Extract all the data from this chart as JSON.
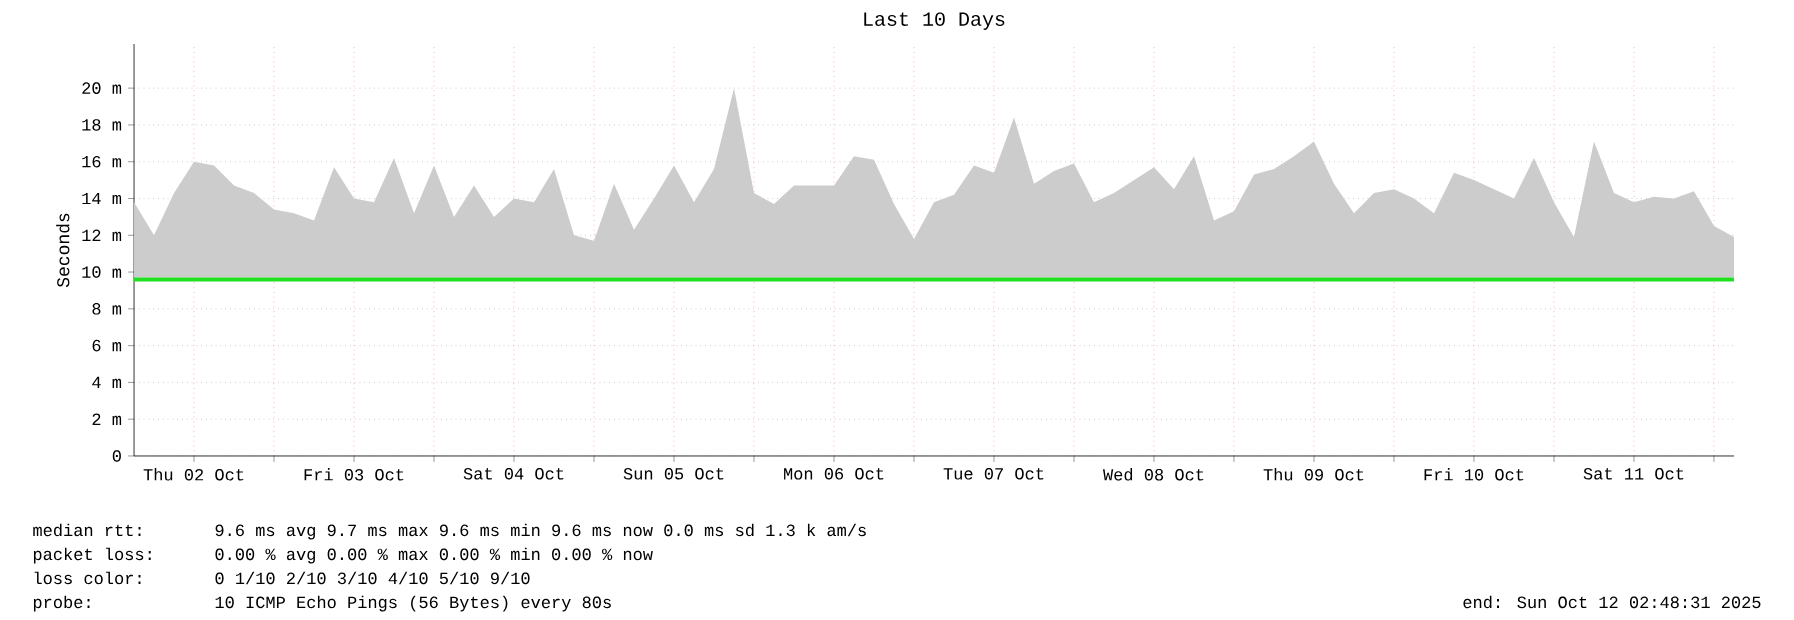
{
  "chart_data": {
    "type": "line",
    "title": "Last 10 Days",
    "ylabel": "Seconds",
    "x": [
      "2025-10-02T03:00",
      "2025-10-02T06:00",
      "2025-10-02T09:00",
      "2025-10-02T12:00",
      "2025-10-02T15:00",
      "2025-10-02T18:00",
      "2025-10-02T21:00",
      "2025-10-03T00:00",
      "2025-10-03T03:00",
      "2025-10-03T06:00",
      "2025-10-03T09:00",
      "2025-10-03T12:00",
      "2025-10-03T15:00",
      "2025-10-03T18:00",
      "2025-10-03T21:00",
      "2025-10-04T00:00",
      "2025-10-04T03:00",
      "2025-10-04T06:00",
      "2025-10-04T09:00",
      "2025-10-04T12:00",
      "2025-10-04T15:00",
      "2025-10-04T18:00",
      "2025-10-04T21:00",
      "2025-10-05T00:00",
      "2025-10-05T03:00",
      "2025-10-05T06:00",
      "2025-10-05T09:00",
      "2025-10-05T12:00",
      "2025-10-05T15:00",
      "2025-10-05T18:00",
      "2025-10-05T21:00",
      "2025-10-06T00:00",
      "2025-10-06T03:00",
      "2025-10-06T06:00",
      "2025-10-06T09:00",
      "2025-10-06T12:00",
      "2025-10-06T15:00",
      "2025-10-06T18:00",
      "2025-10-06T21:00",
      "2025-10-07T00:00",
      "2025-10-07T03:00",
      "2025-10-07T06:00",
      "2025-10-07T09:00",
      "2025-10-07T12:00",
      "2025-10-07T15:00",
      "2025-10-07T18:00",
      "2025-10-07T21:00",
      "2025-10-08T00:00",
      "2025-10-08T03:00",
      "2025-10-08T06:00",
      "2025-10-08T09:00",
      "2025-10-08T12:00",
      "2025-10-08T15:00",
      "2025-10-08T18:00",
      "2025-10-08T21:00",
      "2025-10-09T00:00",
      "2025-10-09T03:00",
      "2025-10-09T06:00",
      "2025-10-09T09:00",
      "2025-10-09T12:00",
      "2025-10-09T15:00",
      "2025-10-09T18:00",
      "2025-10-09T21:00",
      "2025-10-10T00:00",
      "2025-10-10T03:00",
      "2025-10-10T06:00",
      "2025-10-10T09:00",
      "2025-10-10T12:00",
      "2025-10-10T15:00",
      "2025-10-10T18:00",
      "2025-10-10T21:00",
      "2025-10-11T00:00",
      "2025-10-11T03:00",
      "2025-10-11T06:00",
      "2025-10-11T09:00",
      "2025-10-11T12:00",
      "2025-10-11T15:00",
      "2025-10-11T18:00",
      "2025-10-11T21:00",
      "2025-10-12T00:00",
      "2025-10-12T03:00"
    ],
    "series": [
      {
        "color": "#20e020",
        "values": [
          9.6,
          9.6,
          9.6,
          9.6,
          9.6,
          9.6,
          9.6,
          9.6,
          9.6,
          9.6,
          9.6,
          9.6,
          9.6,
          9.6,
          9.6,
          9.6,
          9.6,
          9.6,
          9.6,
          9.6,
          9.6,
          9.6,
          9.6,
          9.6,
          9.6,
          9.6,
          9.6,
          9.6,
          9.6,
          9.6,
          9.6,
          9.6,
          9.6,
          9.6,
          9.6,
          9.6,
          9.6,
          9.6,
          9.6,
          9.6,
          9.6,
          9.6,
          9.6,
          9.6,
          9.6,
          9.6,
          9.6,
          9.6,
          9.6,
          9.6,
          9.6,
          9.6,
          9.6,
          9.6,
          9.6,
          9.6,
          9.6,
          9.6,
          9.6,
          9.6,
          9.6,
          9.6,
          9.6,
          9.6,
          9.6,
          9.6,
          9.6,
          9.6,
          9.6,
          9.6,
          9.6,
          9.6,
          9.6,
          9.6,
          9.6,
          9.6,
          9.6,
          9.6,
          9.6,
          9.6,
          9.6
        ],
        "lower": [
          9.7,
          9.7,
          9.7,
          9.7,
          9.7,
          9.7,
          9.7,
          9.7,
          9.7,
          9.7,
          9.7,
          9.7,
          9.7,
          9.7,
          9.7,
          9.7,
          9.7,
          9.7,
          9.7,
          9.7,
          9.7,
          9.7,
          9.7,
          9.7,
          9.7,
          9.7,
          9.7,
          9.7,
          9.7,
          9.7,
          9.7,
          9.7,
          9.7,
          9.7,
          9.7,
          9.7,
          9.7,
          9.7,
          9.7,
          9.7,
          9.7,
          9.7,
          9.7,
          9.7,
          9.7,
          9.7,
          9.7,
          9.7,
          9.7,
          9.7,
          9.7,
          9.7,
          9.7,
          9.7,
          9.7,
          9.7,
          9.7,
          9.7,
          9.7,
          9.7,
          9.7,
          9.7,
          9.7,
          9.7,
          9.7,
          9.7,
          9.7,
          9.7,
          9.7,
          9.7,
          9.7,
          9.7,
          9.7,
          9.7,
          9.7,
          9.7,
          9.7,
          9.7,
          9.7,
          9.7,
          9.7
        ],
        "upper": [
          13.8,
          12,
          14.3,
          16,
          15.8,
          14.7,
          14.3,
          13.4,
          13.2,
          12.8,
          15.7,
          14,
          13.8,
          16.2,
          13.2,
          15.8,
          13,
          14.7,
          13,
          14,
          13.8,
          15.6,
          12,
          11.7,
          14.8,
          12.3,
          14,
          15.8,
          13.8,
          15.6,
          20,
          14.3,
          13.7,
          14.7,
          14.7,
          14.7,
          16.3,
          16.1,
          13.7,
          11.8,
          13.8,
          14.2,
          15.8,
          15.4,
          18.4,
          14.8,
          15.5,
          15.9,
          13.8,
          14.3,
          15,
          15.7,
          14.5,
          16.3,
          12.8,
          13.3,
          15.3,
          15.6,
          16.3,
          17.1,
          14.8,
          13.2,
          14.3,
          14.5,
          14,
          13.2,
          15.4,
          15,
          14.5,
          14,
          16.2,
          13.8,
          11.9,
          17.1,
          14.3,
          13.8,
          14.1,
          14,
          14.4,
          12.5,
          11.9
        ]
      }
    ],
    "xlim": [
      "2025-10-02T03:00",
      "2025-10-12T03:00"
    ],
    "xticks": [
      {
        "value": "2025-10-02T12:00",
        "label": "Thu 02 Oct"
      },
      {
        "value": "2025-10-03T00:00",
        "label": null
      },
      {
        "value": "2025-10-03T12:00",
        "label": "Fri 03 Oct"
      },
      {
        "value": "2025-10-04T00:00",
        "label": null
      },
      {
        "value": "2025-10-04T12:00",
        "label": "Sat 04 Oct"
      },
      {
        "value": "2025-10-05T00:00",
        "label": null
      },
      {
        "value": "2025-10-05T12:00",
        "label": "Sun 05 Oct"
      },
      {
        "value": "2025-10-06T00:00",
        "label": null
      },
      {
        "value": "2025-10-06T12:00",
        "label": "Mon 06 Oct"
      },
      {
        "value": "2025-10-07T00:00",
        "label": null
      },
      {
        "value": "2025-10-07T12:00",
        "label": "Tue 07 Oct"
      },
      {
        "value": "2025-10-08T00:00",
        "label": null
      },
      {
        "value": "2025-10-08T12:00",
        "label": "Wed 08 Oct"
      },
      {
        "value": "2025-10-09T00:00",
        "label": null
      },
      {
        "value": "2025-10-09T12:00",
        "label": "Thu 09 Oct"
      },
      {
        "value": "2025-10-10T00:00",
        "label": null
      },
      {
        "value": "2025-10-10T12:00",
        "label": "Fri 10 Oct"
      },
      {
        "value": "2025-10-11T00:00",
        "label": null
      },
      {
        "value": "2025-10-11T12:00",
        "label": "Sat 11 Oct"
      },
      {
        "value": "2025-10-12T00:00",
        "label": null
      }
    ],
    "ylim": [
      0,
      22.4
    ],
    "yticks": [
      0,
      {
        "value": 2,
        "label": "2 m"
      },
      {
        "value": 4,
        "label": "4 m"
      },
      {
        "value": 6,
        "label": "6 m"
      },
      {
        "value": 8,
        "label": "8 m"
      },
      {
        "value": 10,
        "label": "10 m"
      },
      {
        "value": 12,
        "label": "12 m"
      },
      {
        "value": 14,
        "label": "14 m"
      },
      {
        "value": 16,
        "label": "16 m"
      },
      {
        "value": 18,
        "label": "18 m"
      },
      {
        "value": 20,
        "label": "20 m"
      }
    ],
    "grid": true,
    "annotations": [
      "median rtt:",
      "9.6 ms avg  9.7 ms max  9.6 ms min  9.6 ms now  0.0 ms sd  1.3 k am/s",
      "packet loss:",
      "0.00 % avg  0.00 % max  0.00 % min  0.00 % now",
      "loss color:",
      "0  1/10  2/10  3/10  4/10  5/10  9/10",
      "probe:",
      "10 ICMP Echo Pings (56 Bytes) every 80s",
      "end: Sun Oct 12 02:48:31 2025"
    ]
  }
}
